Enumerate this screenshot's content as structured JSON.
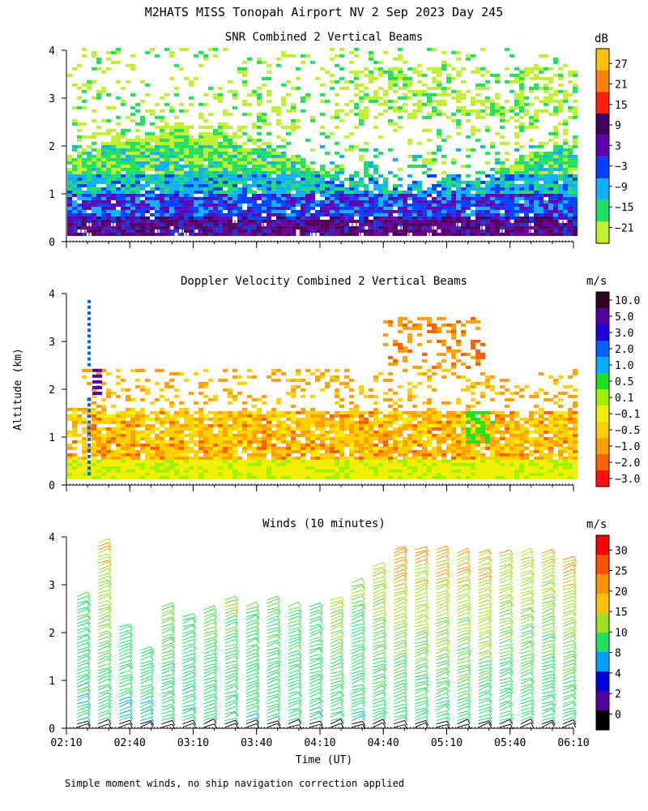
{
  "page": {
    "title": "M2HATS MISS Tonopah Airport NV   2 Sep 2023 Day 245",
    "y_axis_label": "Altitude (km)",
    "x_axis_label": "Time (UT)",
    "footnote": "Simple moment winds, no ship navigation correction applied"
  },
  "chart_data": [
    {
      "type": "heatmap",
      "title": "SNR Combined 2 Vertical Beams",
      "xlabel": "Time (UT)",
      "ylabel": "Altitude (km)",
      "xlim": [
        "02:10",
        "06:10"
      ],
      "ylim": [
        0,
        4
      ],
      "yticks": [
        0,
        1,
        2,
        3,
        4
      ],
      "colorbar": {
        "unit": "dB",
        "labels": [
          "27",
          "21",
          "15",
          "9",
          "3",
          "−3",
          "−9",
          "−15",
          "−21"
        ],
        "colors": [
          "#ffc000",
          "#ff8000",
          "#ff2000",
          "#400060",
          "#6000b0",
          "#0040ff",
          "#10b0ff",
          "#20e060",
          "#c0f030"
        ]
      },
      "layers": [
        {
          "desc": "weak echo upper band",
          "from_km": 2.0,
          "to_km": 4.0,
          "snr_db": -18
        },
        {
          "desc": "moderate band",
          "from_km": 1.2,
          "to_km": 2.0,
          "snr_db": -12
        },
        {
          "desc": "stronger boundary layer",
          "from_km": 0.5,
          "to_km": 1.2,
          "snr_db": -3
        },
        {
          "desc": "strongest near surface",
          "from_km": 0.1,
          "to_km": 0.5,
          "snr_db": 6
        }
      ]
    },
    {
      "type": "heatmap",
      "title": "Doppler Velocity Combined 2 Vertical Beams",
      "xlabel": "Time (UT)",
      "ylabel": "Altitude (km)",
      "xlim": [
        "02:10",
        "06:10"
      ],
      "ylim": [
        0,
        4
      ],
      "yticks": [
        0,
        1,
        2,
        3,
        4
      ],
      "colorbar": {
        "unit": "m/s",
        "labels": [
          "10.0",
          "5.0",
          "3.0",
          "2.0",
          "1.0",
          "0.5",
          "0.1",
          "−0.1",
          "−0.5",
          "−1.0",
          "−2.0",
          "−3.0"
        ],
        "colors": [
          "#300020",
          "#5000a0",
          "#2000e0",
          "#0060ff",
          "#00b0ff",
          "#20e020",
          "#a0f000",
          "#f0f000",
          "#ffd000",
          "#ffa000",
          "#ff6000",
          "#ff1010"
        ]
      },
      "layers": [
        {
          "desc": "near-surface",
          "from_km": 0.1,
          "to_km": 0.5,
          "velocity_ms": -0.1
        },
        {
          "desc": "boundary layer",
          "from_km": 0.5,
          "to_km": 1.5,
          "velocity_ms": -1.0
        }
      ]
    },
    {
      "type": "barbs",
      "title": "Winds (10 minutes)",
      "xlabel": "Time (UT)",
      "ylabel": "Altitude (km)",
      "xlim": [
        "02:10",
        "06:10"
      ],
      "ylim": [
        0,
        4
      ],
      "yticks": [
        0,
        1,
        2,
        3,
        4
      ],
      "xticks": [
        "02:10",
        "02:40",
        "03:10",
        "03:40",
        "04:10",
        "04:40",
        "05:10",
        "05:40",
        "06:10"
      ],
      "colorbar": {
        "unit": "m/s",
        "labels": [
          "30",
          "25",
          "20",
          "15",
          "10",
          "8",
          "4",
          "2",
          "0"
        ],
        "colors": [
          "#ff0000",
          "#ff5000",
          "#ff9000",
          "#ffc000",
          "#a0e020",
          "#20e060",
          "#00a0ff",
          "#0000e0",
          "#5000a0",
          "#000000"
        ]
      },
      "profiles": [
        {
          "time": "02:15",
          "top_km": 2.8,
          "speed_ms": 14
        },
        {
          "time": "02:25",
          "top_km": 3.9,
          "speed_ms": 17
        },
        {
          "time": "02:35",
          "top_km": 2.2,
          "speed_ms": 14
        },
        {
          "time": "02:45",
          "top_km": 1.7,
          "speed_ms": 14
        },
        {
          "time": "02:55",
          "top_km": 2.6,
          "speed_ms": 16
        },
        {
          "time": "03:05",
          "top_km": 2.4,
          "speed_ms": 14
        },
        {
          "time": "03:15",
          "top_km": 2.5,
          "speed_ms": 15
        },
        {
          "time": "03:25",
          "top_km": 2.7,
          "speed_ms": 16
        },
        {
          "time": "03:35",
          "top_km": 2.6,
          "speed_ms": 15
        },
        {
          "time": "03:45",
          "top_km": 2.7,
          "speed_ms": 15
        },
        {
          "time": "03:55",
          "top_km": 2.6,
          "speed_ms": 15
        },
        {
          "time": "04:05",
          "top_km": 2.6,
          "speed_ms": 15
        },
        {
          "time": "04:15",
          "top_km": 2.7,
          "speed_ms": 17
        },
        {
          "time": "04:25",
          "top_km": 3.1,
          "speed_ms": 15
        },
        {
          "time": "04:35",
          "top_km": 3.4,
          "speed_ms": 17
        },
        {
          "time": "04:45",
          "top_km": 3.8,
          "speed_ms": 18
        },
        {
          "time": "04:55",
          "top_km": 3.8,
          "speed_ms": 18
        },
        {
          "time": "05:05",
          "top_km": 3.8,
          "speed_ms": 18
        },
        {
          "time": "05:15",
          "top_km": 3.7,
          "speed_ms": 18
        },
        {
          "time": "05:25",
          "top_km": 3.7,
          "speed_ms": 18
        },
        {
          "time": "05:35",
          "top_km": 3.7,
          "speed_ms": 17
        },
        {
          "time": "05:45",
          "top_km": 3.7,
          "speed_ms": 17
        },
        {
          "time": "05:55",
          "top_km": 3.7,
          "speed_ms": 17
        },
        {
          "time": "06:05",
          "top_km": 3.6,
          "speed_ms": 18
        }
      ]
    }
  ]
}
